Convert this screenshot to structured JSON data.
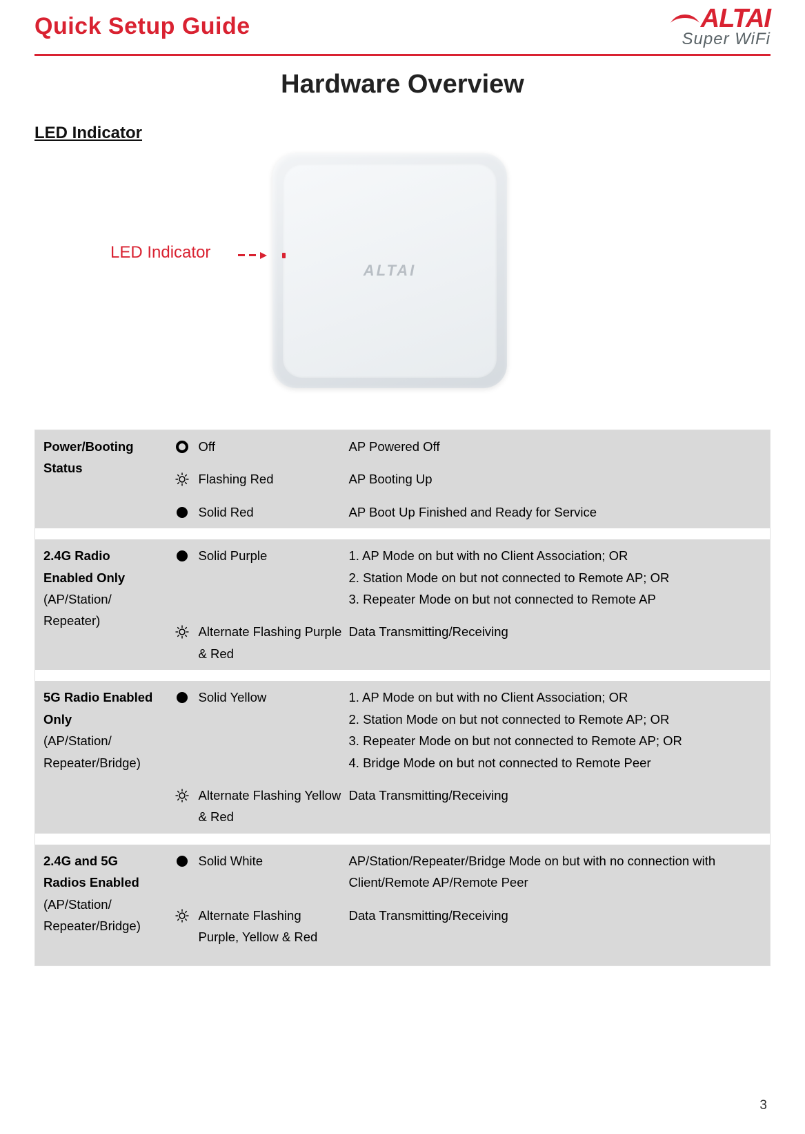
{
  "header": {
    "title": "Quick Setup Guide",
    "logo_top": "ALTAI",
    "logo_bottom": "Super WiFi"
  },
  "page_title": "Hardware Overview",
  "section_title": "LED Indicator",
  "figure": {
    "label": "LED Indicator",
    "device_brand": "ALTAI"
  },
  "colors": {
    "accent": "#d92231",
    "row_bg": "#d9d9d9",
    "border": "#e0e0e0",
    "text": "#222222",
    "logo_sub": "#5a6367"
  },
  "table": {
    "sections": [
      {
        "header_bold": "Power/Booting Status",
        "header_normal": "",
        "rows": [
          {
            "icon": "ring",
            "state": "Off",
            "desc": "AP Powered Off"
          },
          {
            "icon": "sun",
            "state": "Flashing Red",
            "desc": "AP Booting Up"
          },
          {
            "icon": "solid",
            "state": "Solid Red",
            "desc": "AP Boot Up Finished and Ready for Service"
          }
        ]
      },
      {
        "header_bold": "2.4G Radio Enabled Only",
        "header_normal": "(AP/Station/ Repeater)",
        "rows": [
          {
            "icon": "solid",
            "state": "Solid Purple",
            "desc": "1. AP Mode on but with no Client Association; OR\n2. Station Mode on but not connected to Remote AP; OR\n3. Repeater Mode on but not connected to Remote AP"
          },
          {
            "icon": "sun",
            "state": "Alternate Flashing Purple & Red",
            "desc": "Data Transmitting/Receiving"
          }
        ]
      },
      {
        "header_bold": "5G Radio Enabled Only",
        "header_normal": "(AP/Station/ Repeater/Bridge)",
        "rows": [
          {
            "icon": "solid",
            "state": "Solid Yellow",
            "desc": "1. AP Mode on but with no Client Association; OR\n2. Station Mode on but not connected to Remote AP; OR\n3. Repeater Mode on but not connected to Remote AP; OR\n4. Bridge Mode on but not connected to Remote Peer"
          },
          {
            "icon": "sun",
            "state": "Alternate Flashing Yellow & Red",
            "desc": "Data Transmitting/Receiving"
          }
        ]
      },
      {
        "header_bold": "2.4G and 5G Radios Enabled",
        "header_normal": "(AP/Station/ Repeater/Bridge)",
        "rows": [
          {
            "icon": "solid",
            "state": "Solid White",
            "desc": "AP/Station/Repeater/Bridge Mode on but with no connection with Client/Remote AP/Remote Peer"
          },
          {
            "icon": "sun",
            "state": "Alternate Flashing Purple, Yellow & Red",
            "desc": "Data Transmitting/Receiving"
          }
        ]
      }
    ]
  },
  "page_number": "3"
}
